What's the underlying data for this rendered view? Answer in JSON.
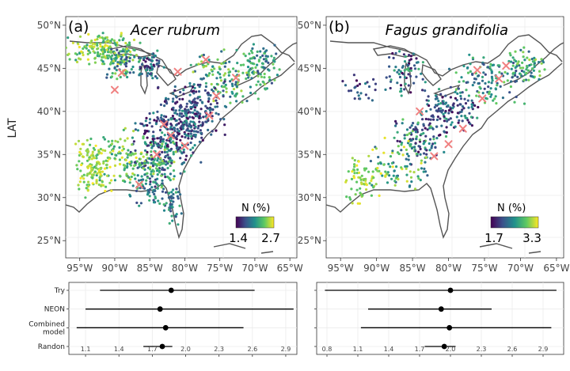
{
  "chart_data": [
    {
      "type": "scatter",
      "panel_label": "(a)",
      "title": "Acer rubrum",
      "ylabel": "LAT",
      "x_ticks": [
        "95°W",
        "90°W",
        "85°W",
        "80°W",
        "75°W",
        "70°W",
        "65°W"
      ],
      "x_tick_values": [
        -95,
        -90,
        -85,
        -80,
        -75,
        -70,
        -65
      ],
      "y_ticks": [
        "50°N",
        "45°N",
        "40°N",
        "35°N",
        "30°N",
        "25°N"
      ],
      "y_tick_values": [
        50,
        45,
        40,
        35,
        30,
        25
      ],
      "xlim": [
        -97,
        -64
      ],
      "ylim": [
        23,
        51
      ],
      "legend": {
        "title": "N (%)",
        "min_label": "1.4",
        "max_label": "2.7",
        "min": 1.4,
        "max": 2.7,
        "placement": "bottom-right"
      },
      "colormap": [
        "#440154",
        "#3b528b",
        "#21918c",
        "#5ec962",
        "#fde725"
      ],
      "marker_color": "#f08080",
      "markers": [
        {
          "lon": -90.0,
          "lat": 42.5
        },
        {
          "lon": -89.0,
          "lat": 44.5
        },
        {
          "lon": -81.0,
          "lat": 44.6
        },
        {
          "lon": -77.0,
          "lat": 46.0
        },
        {
          "lon": -72.7,
          "lat": 43.9
        },
        {
          "lon": -75.5,
          "lat": 41.8
        },
        {
          "lon": -83.0,
          "lat": 38.5
        },
        {
          "lon": -80.0,
          "lat": 36.0
        },
        {
          "lon": -84.0,
          "lat": 35.0
        },
        {
          "lon": -86.5,
          "lat": 31.5
        },
        {
          "lon": -82.0,
          "lat": 37.2
        },
        {
          "lon": -76.5,
          "lat": 39.5
        }
      ],
      "point_clusters": [
        {
          "lon": -92,
          "lat": 47.2,
          "slon": 3.0,
          "slat": 1.0,
          "n": 170,
          "vmin": 0.55,
          "vmax": 1.0
        },
        {
          "lon": -89,
          "lat": 45.5,
          "slon": 1.4,
          "slat": 1.2,
          "n": 80,
          "vmin": 0.2,
          "vmax": 0.95
        },
        {
          "lon": -85,
          "lat": 45.3,
          "slon": 1.1,
          "slat": 1.0,
          "n": 60,
          "vmin": 0.0,
          "vmax": 0.6
        },
        {
          "lon": -74,
          "lat": 44.0,
          "slon": 3.2,
          "slat": 1.7,
          "n": 150,
          "vmin": 0.3,
          "vmax": 0.9
        },
        {
          "lon": -69,
          "lat": 45.5,
          "slon": 1.6,
          "slat": 1.3,
          "n": 70,
          "vmin": 0.2,
          "vmax": 0.8
        },
        {
          "lon": -79,
          "lat": 40.0,
          "slon": 2.8,
          "slat": 1.8,
          "n": 230,
          "vmin": 0.0,
          "vmax": 0.45
        },
        {
          "lon": -82,
          "lat": 37.0,
          "slon": 2.6,
          "slat": 1.8,
          "n": 200,
          "vmin": 0.0,
          "vmax": 0.6
        },
        {
          "lon": -84,
          "lat": 34.0,
          "slon": 2.4,
          "slat": 1.6,
          "n": 150,
          "vmin": 0.1,
          "vmax": 0.9
        },
        {
          "lon": -89,
          "lat": 34.5,
          "slon": 2.5,
          "slat": 2.0,
          "n": 120,
          "vmin": 0.5,
          "vmax": 1.0
        },
        {
          "lon": -93,
          "lat": 33.5,
          "slon": 1.6,
          "slat": 1.8,
          "n": 130,
          "vmin": 0.7,
          "vmax": 1.0
        },
        {
          "lon": -84.5,
          "lat": 31.0,
          "slon": 2.0,
          "slat": 1.2,
          "n": 70,
          "vmin": 0.2,
          "vmax": 0.7
        },
        {
          "lon": -81.8,
          "lat": 29.0,
          "slon": 0.7,
          "slat": 1.3,
          "n": 35,
          "vmin": 0.2,
          "vmax": 0.7
        }
      ],
      "inset": {
        "type": "dot-and-whisker",
        "categories": [
          "Try",
          "NEON",
          "Combined model",
          "Randon"
        ],
        "mean": [
          1.87,
          1.77,
          1.82,
          1.79
        ],
        "lower": [
          1.23,
          1.1,
          1.02,
          1.62
        ],
        "upper": [
          2.62,
          2.97,
          2.52,
          1.88
        ],
        "x_ticks": [
          "1.1",
          "1.4",
          "1.7",
          "2.0",
          "2.3",
          "2.6",
          "2.9"
        ],
        "x_tick_values": [
          1.1,
          1.4,
          1.7,
          2.0,
          2.3,
          2.6,
          2.9
        ],
        "xlim": [
          0.95,
          3.0
        ]
      }
    },
    {
      "type": "scatter",
      "panel_label": "(b)",
      "title": "Fagus grandifolia",
      "ylabel": "",
      "x_ticks": [
        "95°W",
        "90°W",
        "85°W",
        "80°W",
        "75°W",
        "70°W",
        "65°W"
      ],
      "x_tick_values": [
        -95,
        -90,
        -85,
        -80,
        -75,
        -70,
        -65
      ],
      "y_ticks": [
        "50°N",
        "45°N",
        "40°N",
        "35°N",
        "30°N",
        "25°N"
      ],
      "y_tick_values": [
        50,
        45,
        40,
        35,
        30,
        25
      ],
      "xlim": [
        -97,
        -64
      ],
      "ylim": [
        23,
        51
      ],
      "legend": {
        "title": "N (%)",
        "min_label": "1.7",
        "max_label": "3.3",
        "min": 1.7,
        "max": 3.3,
        "placement": "bottom-right"
      },
      "colormap": [
        "#440154",
        "#3b528b",
        "#21918c",
        "#5ec962",
        "#fde725"
      ],
      "marker_color": "#f08080",
      "markers": [
        {
          "lon": -76.0,
          "lat": 44.8
        },
        {
          "lon": -73.0,
          "lat": 43.8
        },
        {
          "lon": -75.3,
          "lat": 41.5
        },
        {
          "lon": -84.0,
          "lat": 40.0
        },
        {
          "lon": -78.0,
          "lat": 38.0
        },
        {
          "lon": -80.0,
          "lat": 36.2
        },
        {
          "lon": -82.0,
          "lat": 34.8
        },
        {
          "lon": -72.0,
          "lat": 45.3
        }
      ],
      "point_clusters": [
        {
          "lon": -86,
          "lat": 44.5,
          "slon": 1.6,
          "slat": 1.4,
          "n": 70,
          "vmin": 0.0,
          "vmax": 0.7
        },
        {
          "lon": -74,
          "lat": 43.8,
          "slon": 3.0,
          "slat": 1.6,
          "n": 130,
          "vmin": 0.2,
          "vmax": 0.8
        },
        {
          "lon": -69,
          "lat": 45.5,
          "slon": 1.4,
          "slat": 1.2,
          "n": 60,
          "vmin": 0.3,
          "vmax": 0.9
        },
        {
          "lon": -80,
          "lat": 40.0,
          "slon": 2.6,
          "slat": 1.6,
          "n": 130,
          "vmin": 0.0,
          "vmax": 0.6
        },
        {
          "lon": -84,
          "lat": 36.5,
          "slon": 2.2,
          "slat": 1.6,
          "n": 110,
          "vmin": 0.0,
          "vmax": 0.8
        },
        {
          "lon": -87,
          "lat": 33.5,
          "slon": 2.5,
          "slat": 1.8,
          "n": 90,
          "vmin": 0.3,
          "vmax": 1.0
        },
        {
          "lon": -92,
          "lat": 32.2,
          "slon": 1.3,
          "slat": 1.6,
          "n": 70,
          "vmin": 0.7,
          "vmax": 1.0
        },
        {
          "lon": -92,
          "lat": 42.5,
          "slon": 1.5,
          "slat": 1.0,
          "n": 25,
          "vmin": 0.0,
          "vmax": 0.5
        }
      ],
      "inset": {
        "type": "dot-and-whisker",
        "categories": [
          "Try",
          "NEON",
          "Combined model",
          "Randon"
        ],
        "mean": [
          2.0,
          1.91,
          1.99,
          1.94
        ],
        "lower": [
          0.78,
          1.2,
          1.13,
          1.75
        ],
        "upper": [
          3.03,
          2.4,
          2.98,
          2.05
        ],
        "x_ticks": [
          "0.8",
          "1.1",
          "1.4",
          "1.7",
          "2.0",
          "2.3",
          "2.6",
          "2.9"
        ],
        "x_tick_values": [
          0.8,
          1.1,
          1.4,
          1.7,
          2.0,
          2.3,
          2.6,
          2.9
        ],
        "xlim": [
          0.7,
          3.1
        ]
      }
    }
  ]
}
